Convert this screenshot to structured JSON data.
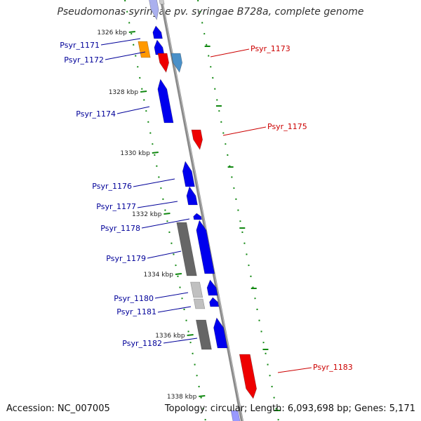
{
  "title": "Pseudomonas syringae pv. syringae B728a, complete genome",
  "footer": {
    "accession": "Accession: NC_007005",
    "summary": "Topology: circular; Length: 6,093,698 bp; Genes: 5,171"
  },
  "colors": {
    "forward_cds": "#0000ee",
    "reverse_cds": "#ee0000",
    "rna": "#ff9900",
    "other_cds": "#4a90c8",
    "pseudo_dark": "#666666",
    "pseudo_light": "#c0c0c0",
    "backbone": "#888888",
    "scale_ticks": "#118811",
    "forward_label": "#000099",
    "reverse_label": "#cc0000"
  },
  "scale_ticks": [
    {
      "label": "1326 kbp"
    },
    {
      "label": "1328 kbp"
    },
    {
      "label": "1330 kbp"
    },
    {
      "label": "1332 kbp"
    },
    {
      "label": "1334 kbp"
    },
    {
      "label": "1336 kbp"
    },
    {
      "label": "1338 kbp"
    }
  ],
  "gene_labels": [
    {
      "name": "Psyr_1171",
      "strand": "forward"
    },
    {
      "name": "Psyr_1172",
      "strand": "forward"
    },
    {
      "name": "Psyr_1173",
      "strand": "reverse"
    },
    {
      "name": "Psyr_1174",
      "strand": "forward"
    },
    {
      "name": "Psyr_1175",
      "strand": "reverse"
    },
    {
      "name": "Psyr_1176",
      "strand": "forward"
    },
    {
      "name": "Psyr_1177",
      "strand": "forward"
    },
    {
      "name": "Psyr_1178",
      "strand": "forward"
    },
    {
      "name": "Psyr_1179",
      "strand": "forward"
    },
    {
      "name": "Psyr_1180",
      "strand": "forward"
    },
    {
      "name": "Psyr_1181",
      "strand": "forward"
    },
    {
      "name": "Psyr_1182",
      "strand": "forward"
    },
    {
      "name": "Psyr_1183",
      "strand": "reverse"
    }
  ]
}
